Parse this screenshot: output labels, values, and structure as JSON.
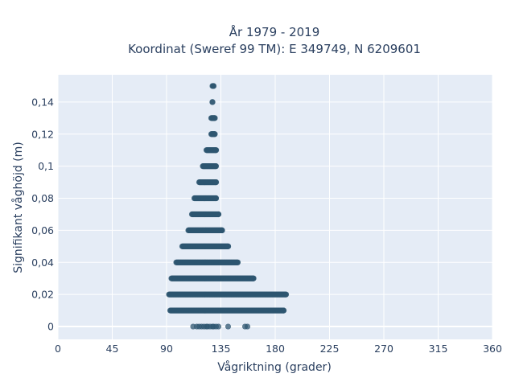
{
  "chart_data": {
    "type": "scatter",
    "title_line1": "År 1979 - 2019",
    "title_line2": "Koordinat (Sweref 99 TM): E 349749, N 6209601",
    "xlabel": "Vågriktning (grader)",
    "ylabel": "Signifikant våghöjd (m)",
    "xlim": [
      0,
      360
    ],
    "ylim": [
      -0.008,
      0.157
    ],
    "x_ticks": [
      0,
      45,
      90,
      135,
      180,
      225,
      270,
      315,
      360
    ],
    "x_tick_labels": [
      "0",
      "45",
      "90",
      "135",
      "180",
      "225",
      "270",
      "315",
      "360"
    ],
    "y_ticks": [
      0,
      0.02,
      0.04,
      0.06,
      0.08,
      0.1,
      0.12,
      0.14
    ],
    "y_tick_labels": [
      "0",
      "0,02",
      "0,04",
      "0,06",
      "0,08",
      "0,1",
      "0,12",
      "0,14"
    ],
    "grid": true,
    "marker_color": "#2e5670",
    "plot_bg": "#e5ecf6",
    "rows": [
      {
        "y": 0.15,
        "x_min": 128,
        "x_max": 129
      },
      {
        "y": 0.14,
        "x_min": 128,
        "x_max": 128
      },
      {
        "y": 0.13,
        "x_min": 127,
        "x_max": 130
      },
      {
        "y": 0.12,
        "x_min": 127,
        "x_max": 130
      },
      {
        "y": 0.11,
        "x_min": 123,
        "x_max": 131
      },
      {
        "y": 0.1,
        "x_min": 120,
        "x_max": 131
      },
      {
        "y": 0.09,
        "x_min": 117,
        "x_max": 131
      },
      {
        "y": 0.08,
        "x_min": 113,
        "x_max": 131
      },
      {
        "y": 0.07,
        "x_min": 111,
        "x_max": 133
      },
      {
        "y": 0.06,
        "x_min": 108,
        "x_max": 136
      },
      {
        "y": 0.05,
        "x_min": 103,
        "x_max": 141
      },
      {
        "y": 0.04,
        "x_min": 98,
        "x_max": 149
      },
      {
        "y": 0.03,
        "x_min": 94,
        "x_max": 162
      },
      {
        "y": 0.02,
        "x_min": 92,
        "x_max": 189
      },
      {
        "y": 0.01,
        "x_min": 93,
        "x_max": 187
      }
    ],
    "zero_points": [
      112,
      115,
      117,
      119,
      121,
      123,
      124,
      126,
      128,
      129,
      131,
      133,
      141,
      155,
      157
    ]
  }
}
